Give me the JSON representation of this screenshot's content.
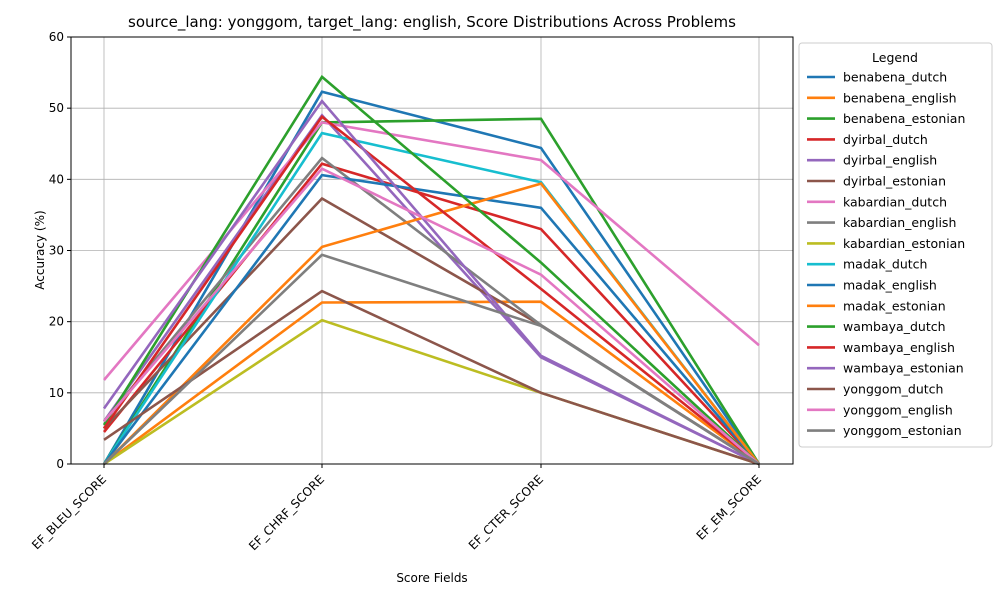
{
  "chart_data": {
    "type": "line",
    "title": "source_lang: yonggom, target_lang: english, Score Distributions Across Problems",
    "xlabel": "Score Fields",
    "ylabel": "Accuracy (%)",
    "ylim": [
      0,
      60
    ],
    "yticks": [
      0,
      10,
      20,
      30,
      40,
      50,
      60
    ],
    "grid": true,
    "legend_title": "Legend",
    "legend_position": "outside-right",
    "categories": [
      "EF_BLEU_SCORE",
      "EF_CHRF_SCORE",
      "EF_CTER_SCORE",
      "EF_EM_SCORE"
    ],
    "series": [
      {
        "name": "benabena_dutch",
        "color": "#1f77b4",
        "values": [
          0.0,
          52.3,
          44.4,
          0.0
        ]
      },
      {
        "name": "benabena_english",
        "color": "#ff7f0e",
        "values": [
          0.0,
          22.7,
          22.8,
          0.0
        ]
      },
      {
        "name": "benabena_estonian",
        "color": "#2ca02c",
        "values": [
          0.0,
          48.0,
          48.5,
          0.0
        ]
      },
      {
        "name": "dyirbal_dutch",
        "color": "#d62728",
        "values": [
          4.5,
          42.2,
          33.0,
          0.0
        ]
      },
      {
        "name": "dyirbal_english",
        "color": "#9467bd",
        "values": [
          6.0,
          49.0,
          15.0,
          0.0
        ]
      },
      {
        "name": "dyirbal_estonian",
        "color": "#8c564b",
        "values": [
          5.0,
          37.3,
          19.5,
          0.0
        ]
      },
      {
        "name": "kabardian_dutch",
        "color": "#e377c2",
        "values": [
          11.8,
          48.0,
          42.7,
          16.7
        ]
      },
      {
        "name": "kabardian_english",
        "color": "#7f7f7f",
        "values": [
          6.0,
          43.0,
          19.5,
          0.0
        ]
      },
      {
        "name": "kabardian_estonian",
        "color": "#bcbd22",
        "values": [
          0.0,
          20.2,
          10.0,
          0.0
        ]
      },
      {
        "name": "madak_dutch",
        "color": "#17becf",
        "values": [
          0.0,
          46.5,
          39.6,
          0.0
        ]
      },
      {
        "name": "madak_english",
        "color": "#1f77b4",
        "values": [
          0.0,
          40.6,
          36.0,
          0.0
        ]
      },
      {
        "name": "madak_estonian",
        "color": "#ff7f0e",
        "values": [
          0.0,
          30.5,
          39.4,
          0.0
        ]
      },
      {
        "name": "wambaya_dutch",
        "color": "#2ca02c",
        "values": [
          5.5,
          54.4,
          28.3,
          0.0
        ]
      },
      {
        "name": "wambaya_english",
        "color": "#d62728",
        "values": [
          5.0,
          48.8,
          24.6,
          0.0
        ]
      },
      {
        "name": "wambaya_estonian",
        "color": "#9467bd",
        "values": [
          7.8,
          51.0,
          15.2,
          0.0
        ]
      },
      {
        "name": "yonggom_dutch",
        "color": "#8c564b",
        "values": [
          3.4,
          24.3,
          10.0,
          0.0
        ]
      },
      {
        "name": "yonggom_english",
        "color": "#e377c2",
        "values": [
          6.0,
          41.5,
          26.6,
          0.0
        ]
      },
      {
        "name": "yonggom_estonian",
        "color": "#7f7f7f",
        "values": [
          0.0,
          29.4,
          19.4,
          0.0
        ]
      }
    ]
  }
}
